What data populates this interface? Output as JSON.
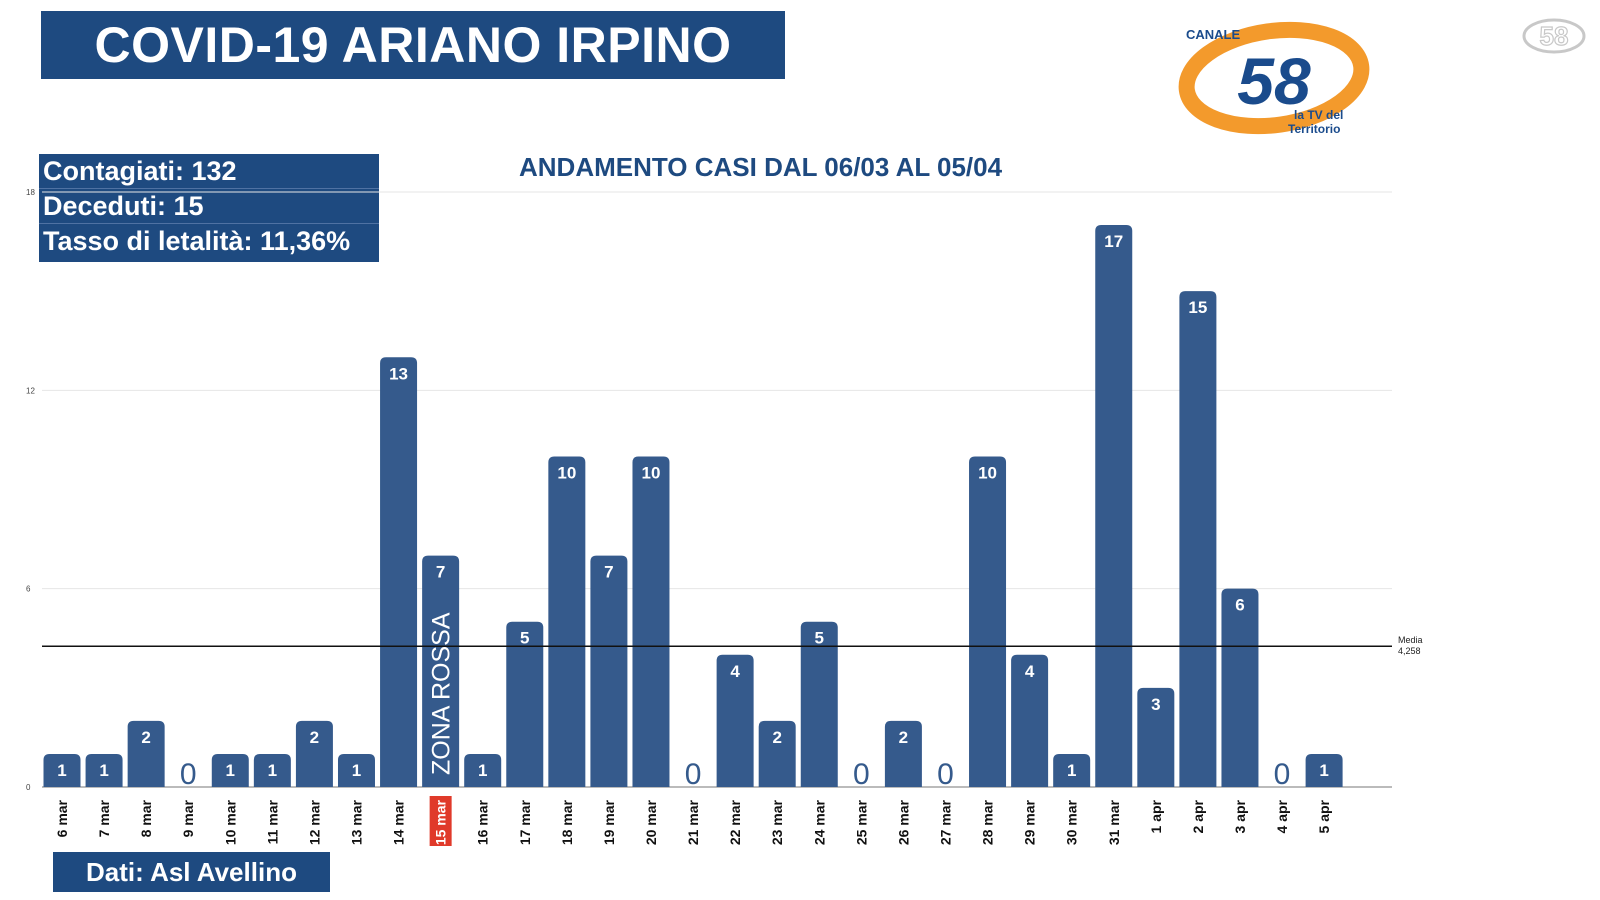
{
  "header": {
    "title": "COVID-19 ARIANO IRPINO"
  },
  "stats": {
    "contagiati": "Contagiati: 132",
    "deceduti": "Deceduti: 15",
    "letalita": "Tasso di letalità: 11,36%"
  },
  "source": "Dati: Asl Avellino",
  "logo": {
    "top_text": "CANALE",
    "number": "58",
    "tagline_1": "la TV del",
    "tagline_2": "Territorio",
    "corner_number": "58"
  },
  "colors": {
    "bar": "#355a8c",
    "banner": "#1e4a80",
    "highlight": "#e03a2a",
    "logo_orange": "#f39a2c",
    "logo_blue": "#1a4b8c"
  },
  "chart_data": {
    "type": "bar",
    "title": "ANDAMENTO CASI DAL 06/03 AL 05/04",
    "categories": [
      "6 mar",
      "7 mar",
      "8 mar",
      "9 mar",
      "10 mar",
      "11 mar",
      "12 mar",
      "13 mar",
      "14 mar",
      "15 mar",
      "16 mar",
      "17 mar",
      "18 mar",
      "19 mar",
      "20 mar",
      "21 mar",
      "22 mar",
      "23 mar",
      "24 mar",
      "25 mar",
      "26 mar",
      "27 mar",
      "28 mar",
      "29 mar",
      "30 mar",
      "31 mar",
      "1 apr",
      "2 apr",
      "3 apr",
      "4 apr",
      "5 apr"
    ],
    "values": [
      1,
      1,
      2,
      0,
      1,
      1,
      2,
      1,
      13,
      7,
      1,
      5,
      10,
      7,
      10,
      0,
      4,
      2,
      5,
      0,
      2,
      0,
      10,
      4,
      1,
      17,
      3,
      15,
      6,
      0,
      1
    ],
    "ylim": [
      0,
      18
    ],
    "yticks": [
      0,
      6,
      12,
      18
    ],
    "grid": true,
    "highlighted_category": "15 mar",
    "bar_annotation": {
      "category": "15 mar",
      "text": "ZONA ROSSA"
    },
    "mean_line": {
      "value": 4.258,
      "label_1": "Media",
      "label_2": "4,258"
    }
  }
}
